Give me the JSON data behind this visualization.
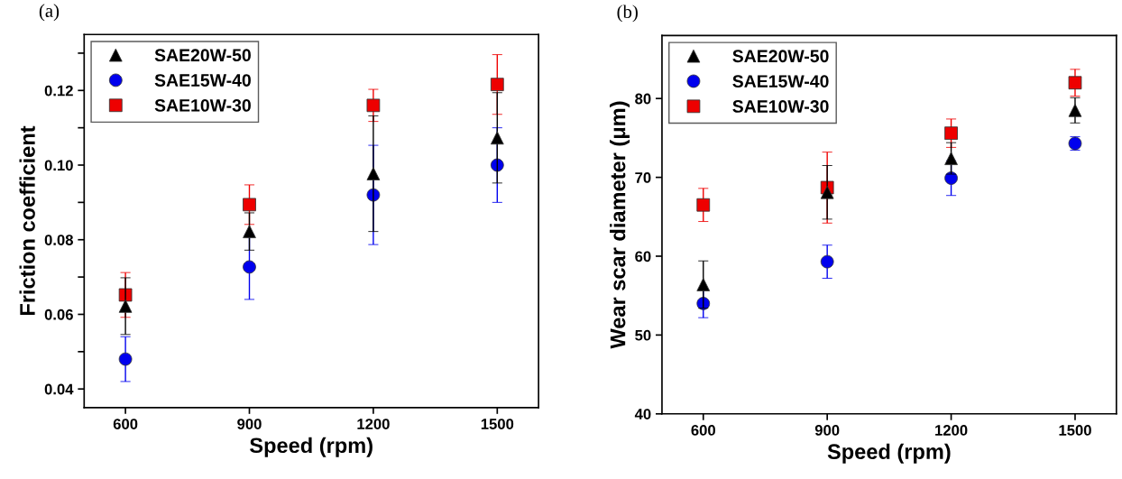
{
  "chart_data": [
    {
      "type": "scatter",
      "title": "(a)",
      "xlabel": "Speed (rpm)",
      "ylabel": "Friction coefficient",
      "x": [
        600,
        900,
        1200,
        1500
      ],
      "xlim": [
        500,
        1600
      ],
      "xticks": [
        600,
        900,
        1200,
        1500
      ],
      "ylim": [
        0.035,
        0.135
      ],
      "yticks": [
        {
          "value": 0.04,
          "label": "0.04"
        },
        {
          "value": 0.05,
          "label": null
        },
        {
          "value": 0.06,
          "label": "0.06"
        },
        {
          "value": 0.07,
          "label": null
        },
        {
          "value": 0.08,
          "label": "0.08"
        },
        {
          "value": 0.09,
          "label": null
        },
        {
          "value": 0.1,
          "label": "0.10"
        },
        {
          "value": 0.11,
          "label": null
        },
        {
          "value": 0.12,
          "label": "0.12"
        },
        {
          "value": 0.13,
          "label": null
        }
      ],
      "legend": "top left",
      "grid": false,
      "series": [
        {
          "name": "SAE20W-50",
          "color": "#000000",
          "marker": "triangle",
          "values": [
            0.0622,
            0.0822,
            0.0977,
            0.1073
          ],
          "errors": [
            0.0076,
            0.005,
            0.0155,
            0.0121
          ]
        },
        {
          "name": "SAE15W-40",
          "color": "#0000ee",
          "marker": "circle",
          "values": [
            0.048,
            0.0727,
            0.092,
            0.1
          ],
          "errors": [
            0.006,
            0.0087,
            0.0133,
            0.01
          ]
        },
        {
          "name": "SAE10W-30",
          "color": "#ee0000",
          "marker": "square",
          "values": [
            0.0652,
            0.0894,
            0.116,
            0.1216
          ],
          "errors": [
            0.006,
            0.0053,
            0.0043,
            0.008
          ]
        }
      ]
    },
    {
      "type": "scatter",
      "title": "(b)",
      "xlabel": "Speed (rpm)",
      "ylabel": "Wear scar diameter (μm)",
      "x": [
        600,
        900,
        1200,
        1500
      ],
      "xlim": [
        500,
        1600
      ],
      "xticks": [
        600,
        900,
        1200,
        1500
      ],
      "ylim": [
        40,
        88
      ],
      "yticks": [
        40,
        50,
        60,
        70,
        80
      ],
      "legend": "top left",
      "grid": false,
      "series": [
        {
          "name": "SAE20W-50",
          "color": "#000000",
          "marker": "triangle",
          "values": [
            56.4,
            68.1,
            72.4,
            78.5
          ],
          "errors": [
            3.0,
            3.4,
            2.0,
            1.6
          ]
        },
        {
          "name": "SAE15W-40",
          "color": "#0000ee",
          "marker": "circle",
          "values": [
            54.0,
            59.3,
            69.9,
            74.3
          ],
          "errors": [
            1.8,
            2.1,
            2.2,
            0.85
          ]
        },
        {
          "name": "SAE10W-30",
          "color": "#ee0000",
          "marker": "square",
          "values": [
            66.5,
            68.7,
            75.6,
            82.0
          ],
          "errors": [
            2.1,
            4.5,
            1.8,
            1.7
          ]
        }
      ]
    }
  ]
}
